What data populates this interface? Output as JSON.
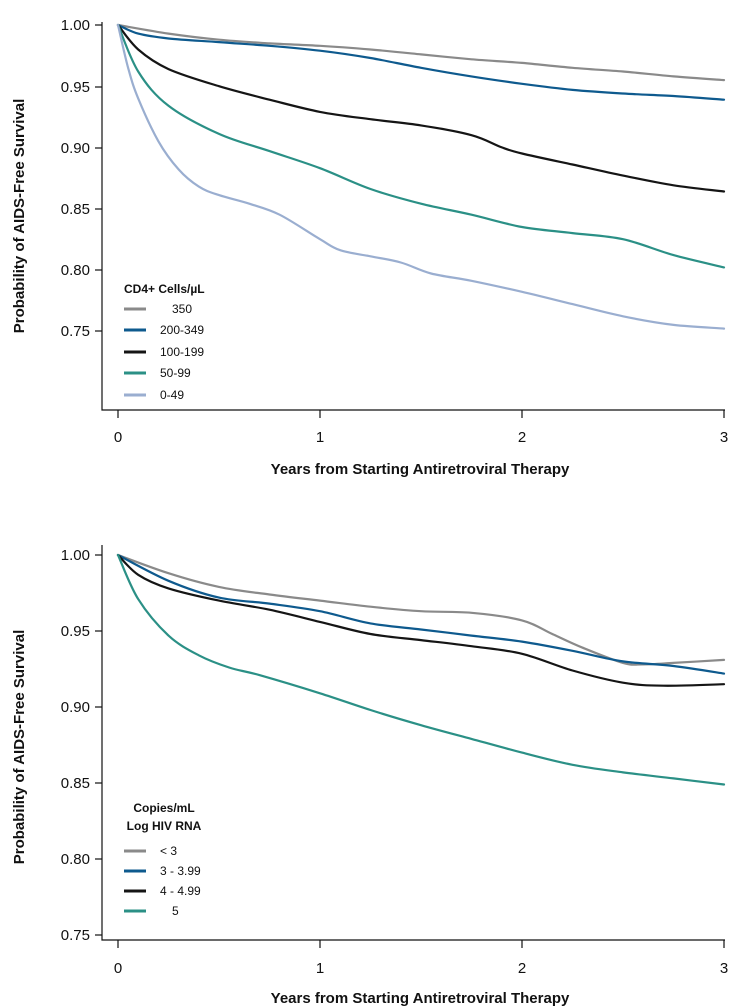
{
  "chart_data": [
    {
      "type": "line",
      "title": "",
      "xlabel": "Years from Starting Antiretroviral Therapy",
      "ylabel": "Probability of AIDS-Free Survival",
      "xlim": [
        0,
        3
      ],
      "ylim": [
        0.7,
        1.0
      ],
      "xticks": [
        "0",
        "1",
        "2",
        "3"
      ],
      "yticks": [
        "0.75",
        "0.80",
        "0.85",
        "0.90",
        "0.95",
        "1.00"
      ],
      "grid": false,
      "legend": {
        "title_lines": [
          "CD4+ Cells/µL"
        ],
        "placement": "lower-left"
      },
      "series": [
        {
          "name": "350",
          "color": "#8a8a8a",
          "x": [
            0,
            0.25,
            0.5,
            0.75,
            1.0,
            1.25,
            1.5,
            1.75,
            2.0,
            2.25,
            2.5,
            2.75,
            3.0
          ],
          "y": [
            1.0,
            0.993,
            0.988,
            0.985,
            0.983,
            0.98,
            0.976,
            0.972,
            0.969,
            0.965,
            0.962,
            0.958,
            0.955
          ]
        },
        {
          "name": "200-349",
          "color": "#0e5a8e",
          "x": [
            0,
            0.1,
            0.25,
            0.5,
            0.75,
            1.0,
            1.25,
            1.5,
            1.75,
            2.0,
            2.25,
            2.5,
            2.75,
            3.0
          ],
          "y": [
            1.0,
            0.993,
            0.989,
            0.986,
            0.983,
            0.979,
            0.973,
            0.965,
            0.958,
            0.952,
            0.947,
            0.944,
            0.942,
            0.939
          ]
        },
        {
          "name": "100-199",
          "color": "#151515",
          "x": [
            0,
            0.1,
            0.25,
            0.5,
            0.75,
            1.0,
            1.25,
            1.5,
            1.75,
            1.9,
            2.0,
            2.25,
            2.5,
            2.75,
            3.0
          ],
          "y": [
            1.0,
            0.98,
            0.964,
            0.95,
            0.939,
            0.929,
            0.923,
            0.918,
            0.91,
            0.9,
            0.895,
            0.886,
            0.877,
            0.869,
            0.864
          ]
        },
        {
          "name": "50-99",
          "color": "#2b9086",
          "x": [
            0,
            0.1,
            0.25,
            0.5,
            0.75,
            1.0,
            1.25,
            1.5,
            1.75,
            2.0,
            2.25,
            2.5,
            2.75,
            3.0
          ],
          "y": [
            1.0,
            0.962,
            0.934,
            0.911,
            0.897,
            0.883,
            0.866,
            0.854,
            0.845,
            0.835,
            0.83,
            0.825,
            0.812,
            0.802
          ]
        },
        {
          "name": "0-49",
          "color": "#9aaed0",
          "x": [
            0,
            0.05,
            0.1,
            0.2,
            0.3,
            0.4,
            0.5,
            0.65,
            0.8,
            1.0,
            1.1,
            1.25,
            1.4,
            1.55,
            1.75,
            2.0,
            2.25,
            2.5,
            2.75,
            3.0
          ],
          "y": [
            1.0,
            0.965,
            0.94,
            0.905,
            0.882,
            0.868,
            0.861,
            0.854,
            0.845,
            0.825,
            0.816,
            0.811,
            0.806,
            0.797,
            0.791,
            0.782,
            0.772,
            0.762,
            0.755,
            0.752
          ]
        }
      ]
    },
    {
      "type": "line",
      "title": "",
      "xlabel": "Years from Starting Antiretroviral Therapy",
      "ylabel": "Probability of AIDS-Free Survival",
      "xlim": [
        0,
        3
      ],
      "ylim": [
        0.75,
        1.0
      ],
      "xticks": [
        "0",
        "1",
        "2",
        "3"
      ],
      "yticks": [
        "0.75",
        "0.80",
        "0.85",
        "0.90",
        "0.95",
        "1.00"
      ],
      "grid": false,
      "legend": {
        "title_lines": [
          "Copies/mL",
          "Log HIV RNA"
        ],
        "placement": "lower-left"
      },
      "series": [
        {
          "name": "< 3",
          "color": "#8a8a8a",
          "x": [
            0,
            0.25,
            0.5,
            0.75,
            1.0,
            1.25,
            1.5,
            1.75,
            2.0,
            2.15,
            2.3,
            2.5,
            2.6,
            2.75,
            3.0
          ],
          "y": [
            1.0,
            0.988,
            0.979,
            0.974,
            0.97,
            0.966,
            0.963,
            0.962,
            0.957,
            0.948,
            0.939,
            0.929,
            0.928,
            0.929,
            0.931
          ]
        },
        {
          "name": "3 - 3.99",
          "color": "#0e5a8e",
          "x": [
            0,
            0.25,
            0.5,
            0.75,
            1.0,
            1.25,
            1.5,
            1.75,
            2.0,
            2.25,
            2.5,
            2.75,
            3.0
          ],
          "y": [
            1.0,
            0.983,
            0.972,
            0.968,
            0.963,
            0.955,
            0.951,
            0.947,
            0.943,
            0.937,
            0.93,
            0.927,
            0.922
          ]
        },
        {
          "name": "4 - 4.99",
          "color": "#151515",
          "x": [
            0,
            0.1,
            0.25,
            0.5,
            0.75,
            1.0,
            1.25,
            1.5,
            1.75,
            2.0,
            2.25,
            2.5,
            2.7,
            3.0
          ],
          "y": [
            1.0,
            0.987,
            0.978,
            0.97,
            0.964,
            0.956,
            0.948,
            0.944,
            0.94,
            0.935,
            0.924,
            0.916,
            0.914,
            0.915
          ]
        },
        {
          "name": "5",
          "color": "#2b9086",
          "x": [
            0,
            0.1,
            0.25,
            0.4,
            0.55,
            0.7,
            1.0,
            1.25,
            1.5,
            1.75,
            2.0,
            2.25,
            2.5,
            2.75,
            3.0
          ],
          "y": [
            1.0,
            0.971,
            0.947,
            0.934,
            0.926,
            0.921,
            0.909,
            0.898,
            0.888,
            0.879,
            0.87,
            0.862,
            0.857,
            0.853,
            0.849
          ]
        }
      ]
    }
  ]
}
